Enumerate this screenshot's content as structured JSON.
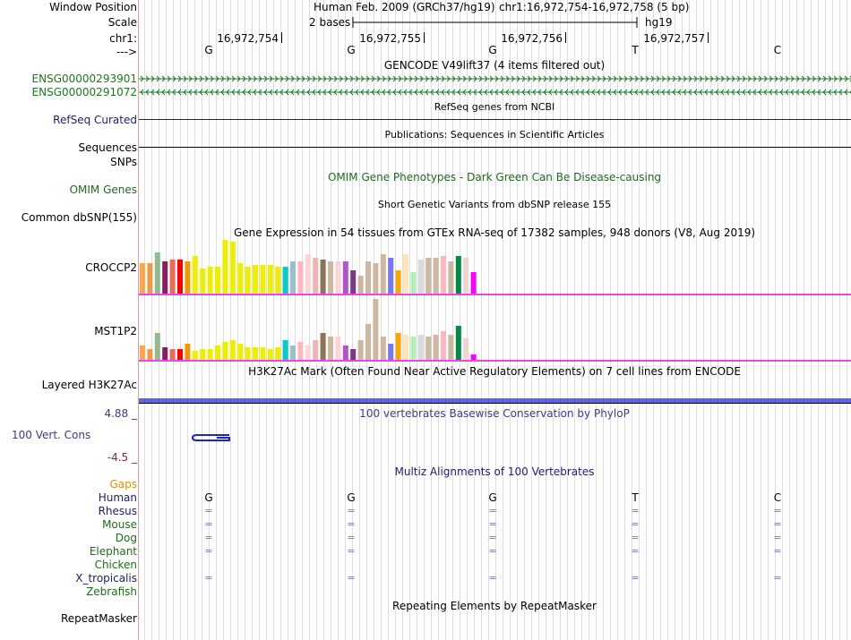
{
  "header": {
    "window_position_label": "Window Position",
    "scale_label": "Scale",
    "chrom_label": "chr1:",
    "strand_label": "--->",
    "assembly_text": "Human Feb. 2009 (GRCh37/hg19)",
    "position_text": "chr1:16,972,754-16,972,758 (5 bp)",
    "scale_text": "2 bases",
    "db_text": "hg19",
    "ticks": [
      "16,972,754",
      "16,972,755",
      "16,972,756",
      "16,972,757"
    ]
  },
  "bases": [
    "G",
    "G",
    "G",
    "T",
    "C"
  ],
  "tracks": {
    "gencode": {
      "title": "GENCODE V49lift37 (4 items filtered out)",
      "items": [
        "ENSG00000293901",
        "ENSG00000291072"
      ],
      "color": "#1a7a1a"
    },
    "refseq": {
      "title": "RefSeq genes from NCBI",
      "label": "RefSeq Curated",
      "color": "#1c1c7a"
    },
    "publications": {
      "title": "Publications: Sequences in Scientific Articles",
      "label": "Sequences"
    },
    "snps": {
      "label": "SNPs"
    },
    "omim": {
      "title": "OMIM Gene Phenotypes - Dark Green Can Be Disease-causing",
      "label": "OMIM Genes",
      "color": "#1a6e1a"
    },
    "dbsnp": {
      "title": "Short Genetic Variants from dbSNP release 155",
      "label": "Common dbSNP(155)"
    },
    "gtex": {
      "title": "Gene Expression in 54 tissues from GTEx RNA-seq of 17382 samples, 948 donors (V8, Aug 2019)",
      "genes": [
        "CROCCP2",
        "MST1P2"
      ],
      "tissue_colors": [
        "#ffa54f",
        "#ee9a49",
        "#8fbc8f",
        "#8b1c62",
        "#ee6a50",
        "#ff0000",
        "#ee9a00",
        "#eeee00",
        "#eeee00",
        "#eeee00",
        "#eeee00",
        "#eeee00",
        "#eeee00",
        "#eeee00",
        "#eeee00",
        "#eeee00",
        "#eeee00",
        "#eeee00",
        "#eeee00",
        "#00cdcd",
        "#9ac0cd",
        "#ffb6c1",
        "#ffd5d5",
        "#eeb4b4",
        "#8b7355",
        "#cdb79e",
        "#ffd3d3",
        "#b452cd",
        "#7a378b",
        "#cdb79e",
        "#cdb79e",
        "#cdb79e",
        "#cdb79e",
        "#7777ff",
        "#ffa500",
        "#ffe4b5",
        "#b4eeb4",
        "#d9d9d9",
        "#cdb79e",
        "#cdb79e",
        "#ffb6c1",
        "#cdb79e",
        "#008b45",
        "#eed5d2",
        "#ff00ff"
      ],
      "crocc_values": [
        34,
        34,
        46,
        36,
        38,
        38,
        36,
        42,
        28,
        30,
        30,
        60,
        58,
        34,
        30,
        32,
        32,
        32,
        30,
        30,
        36,
        36,
        44,
        40,
        38,
        36,
        36,
        36,
        26,
        20,
        36,
        34,
        44,
        40,
        26,
        44,
        24,
        38,
        40,
        40,
        42,
        36,
        42,
        40,
        24
      ],
      "mst1_values": [
        16,
        12,
        30,
        14,
        12,
        12,
        18,
        10,
        12,
        12,
        16,
        20,
        22,
        18,
        14,
        14,
        14,
        12,
        14,
        22,
        16,
        20,
        16,
        22,
        30,
        26,
        26,
        16,
        12,
        22,
        40,
        68,
        26,
        18,
        30,
        28,
        26,
        28,
        26,
        28,
        32,
        28,
        38,
        24,
        6
      ],
      "magenta": "#ee44ee"
    },
    "h3k27ac": {
      "title": "H3K27Ac Mark (Often Found Near Active Regulatory Elements) on 7 cell lines from ENCODE",
      "label": "Layered H3K27Ac",
      "color": "#6060ee"
    },
    "phylop": {
      "title": "100 vertebrates Basewise Conservation by PhyloP",
      "label": "100 Vert. Cons",
      "max": "4.88 _",
      "min": "-4.5 _",
      "label_color": "#3a3a9a",
      "min_color": "#8a2a2a"
    },
    "multiz": {
      "title": "Multiz Alignments of 100 Vertebrates",
      "gaps_label": "Gaps",
      "species": [
        {
          "name": "Human",
          "color": "#1c1c7a"
        },
        {
          "name": "Rhesus",
          "color": "#1c1c7a"
        },
        {
          "name": "Mouse",
          "color": "#1a6e1a"
        },
        {
          "name": "Dog",
          "color": "#1a6e1a"
        },
        {
          "name": "Elephant",
          "color": "#1a6e1a"
        },
        {
          "name": "Chicken",
          "color": "#1a6e1a"
        },
        {
          "name": "X_tropicalis",
          "color": "#1c1c7a"
        },
        {
          "name": "Zebrafish",
          "color": "#1a6e1a"
        }
      ],
      "eq_symbol": "="
    },
    "repeatmasker": {
      "title": "Repeating Elements by RepeatMasker",
      "label": "RepeatMasker"
    }
  }
}
